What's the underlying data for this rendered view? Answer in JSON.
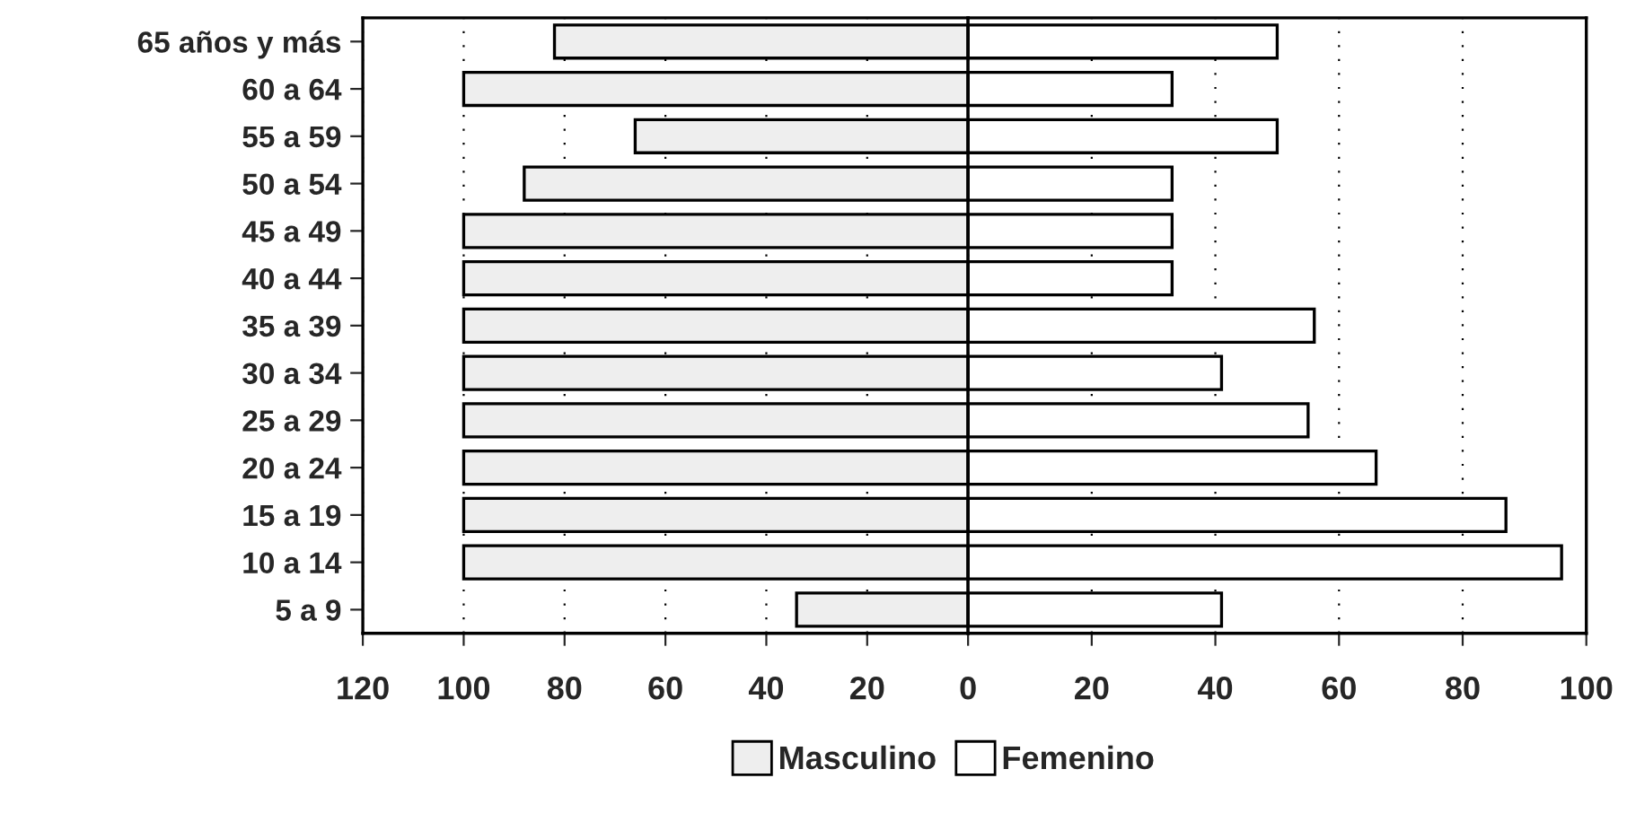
{
  "chart_data": [
    {
      "type": "bar",
      "orientation": "horizontal",
      "categories": [
        "65 años y más",
        "60 a 64",
        "55 a 59",
        "50 a 54",
        "45 a 49",
        "40 a 44",
        "35 a 39",
        "30 a 34",
        "25 a 29",
        "20 a 24",
        "15 a 19",
        "10 a 14",
        "5 a 9"
      ],
      "series": [
        {
          "name": "Masculino",
          "color": "#eeeeee",
          "values": [
            82,
            100,
            66,
            88,
            100,
            100,
            100,
            100,
            100,
            100,
            100,
            100,
            34
          ]
        }
      ],
      "xlim": [
        120,
        0
      ],
      "xticks": [
        120,
        100,
        80,
        60,
        40,
        20
      ],
      "grid": "x",
      "legend": "bottom"
    },
    {
      "type": "bar",
      "orientation": "horizontal",
      "series": [
        {
          "name": "Femenino",
          "color": "#ffffff",
          "values": [
            50,
            33,
            50,
            33,
            33,
            33,
            56,
            41,
            55,
            66,
            87,
            96,
            41
          ]
        }
      ],
      "xlim": [
        0,
        100
      ],
      "xticks": [
        0,
        20,
        40,
        60,
        80,
        100
      ],
      "grid": "x",
      "legend": "bottom",
      "tick_labels": "x"
    }
  ]
}
